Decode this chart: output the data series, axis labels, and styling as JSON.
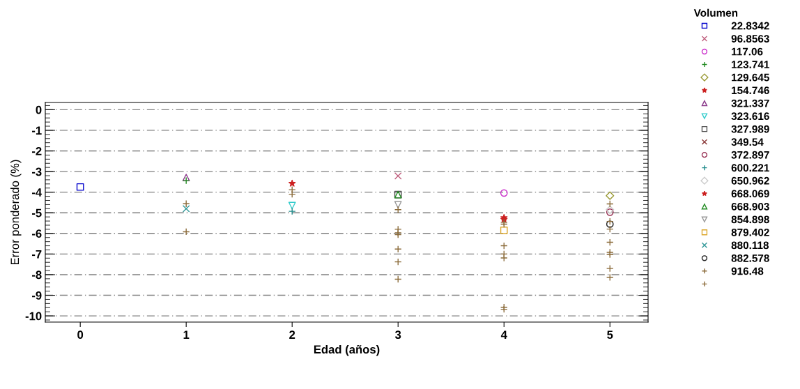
{
  "chart_data": {
    "type": "scatter",
    "xlabel": "Edad (años)",
    "ylabel": "Error ponderado (%)",
    "legend_title": "Volumen",
    "legend": "right",
    "grid": "y",
    "xlim": [
      -0.33,
      5.36
    ],
    "ylim": [
      -10.3,
      0.35
    ],
    "xticks": [
      0,
      1,
      2,
      3,
      4,
      5
    ],
    "yticks": [
      0,
      -1,
      -2,
      -3,
      -4,
      -5,
      -6,
      -7,
      -8,
      -9,
      -10
    ],
    "series": [
      {
        "name": "22.8342",
        "color": "#0000cc",
        "marker": "square",
        "x": [
          0
        ],
        "values": [
          -3.75
        ]
      },
      {
        "name": "96.8563",
        "color": "#c0607f",
        "marker": "cross",
        "x": [
          3
        ],
        "values": [
          -3.21
        ]
      },
      {
        "name": "117.06",
        "color": "#cc33cc",
        "marker": "circle",
        "x": [
          4
        ],
        "values": [
          -4.04
        ]
      },
      {
        "name": "123.741",
        "color": "#228b22",
        "marker": "plus",
        "x": [
          1
        ],
        "values": [
          -3.44
        ]
      },
      {
        "name": "129.645",
        "color": "#999933",
        "marker": "diamond",
        "x": [
          5
        ],
        "values": [
          -4.17
        ]
      },
      {
        "name": "154.746",
        "color": "#cc2222",
        "marker": "star",
        "x": [
          2,
          4
        ],
        "values": [
          -3.58,
          -5.24
        ]
      },
      {
        "name": "321.337",
        "color": "#8b3a8b",
        "marker": "triangle",
        "x": [
          1
        ],
        "values": [
          -3.29
        ]
      },
      {
        "name": "323.616",
        "color": "#33cccc",
        "marker": "triangle_down",
        "x": [
          2
        ],
        "values": [
          -4.65
        ]
      },
      {
        "name": "327.989",
        "color": "#555555",
        "marker": "square",
        "x": [
          3
        ],
        "values": [
          -4.12
        ]
      },
      {
        "name": "349.54",
        "color": "#8b3a3a",
        "marker": "cross"
      },
      {
        "name": "372.897",
        "color": "#993355",
        "marker": "circle",
        "x": [
          5
        ],
        "values": [
          -4.97
        ]
      },
      {
        "name": "600.221",
        "color": "#228b8b",
        "marker": "plus",
        "x": [
          2
        ],
        "values": [
          -4.93
        ]
      },
      {
        "name": "650.962",
        "color": "#cccccc",
        "marker": "diamond",
        "x": [
          5
        ],
        "values": [
          -4.85
        ]
      },
      {
        "name": "668.069",
        "color": "#cc2222",
        "marker": "star",
        "x": [
          4
        ],
        "values": [
          -5.33
        ]
      },
      {
        "name": "668.903",
        "color": "#228b22",
        "marker": "triangle",
        "x": [
          3
        ],
        "values": [
          -4.12
        ]
      },
      {
        "name": "854.898",
        "color": "#999999",
        "marker": "triangle_down",
        "x": [
          3
        ],
        "values": [
          -4.61
        ]
      },
      {
        "name": "879.402",
        "color": "#ddaa33",
        "marker": "square",
        "x": [
          4
        ],
        "values": [
          -5.85
        ]
      },
      {
        "name": "880.118",
        "color": "#339999",
        "marker": "cross",
        "x": [
          1
        ],
        "values": [
          -4.8
        ]
      },
      {
        "name": "882.578",
        "color": "#222222",
        "marker": "circle",
        "x": [
          5
        ],
        "values": [
          -5.55
        ]
      },
      {
        "name": "916.48",
        "color": "#8b6b3a",
        "marker": "plus",
        "x": [
          1,
          1,
          2,
          2,
          3,
          3,
          3,
          3,
          3,
          3,
          3
        ],
        "values": [
          -4.56,
          -5.92,
          -3.88,
          -4.1,
          -4.85,
          -5.8,
          -5.97,
          -6.06,
          -6.76,
          -7.38,
          -8.22
        ]
      },
      {
        "color": "#8b6b3a",
        "marker": "plus",
        "x": [
          4,
          4,
          4,
          4,
          4,
          4,
          4,
          5,
          5,
          5,
          5,
          5,
          5,
          5,
          5
        ],
        "values": [
          -5.46,
          -5.55,
          -6.6,
          -7.0,
          -7.19,
          -9.58,
          -9.68,
          -4.57,
          -5.42,
          -5.79,
          -6.43,
          -6.92,
          -7.02,
          -7.7,
          -8.13
        ]
      }
    ]
  }
}
